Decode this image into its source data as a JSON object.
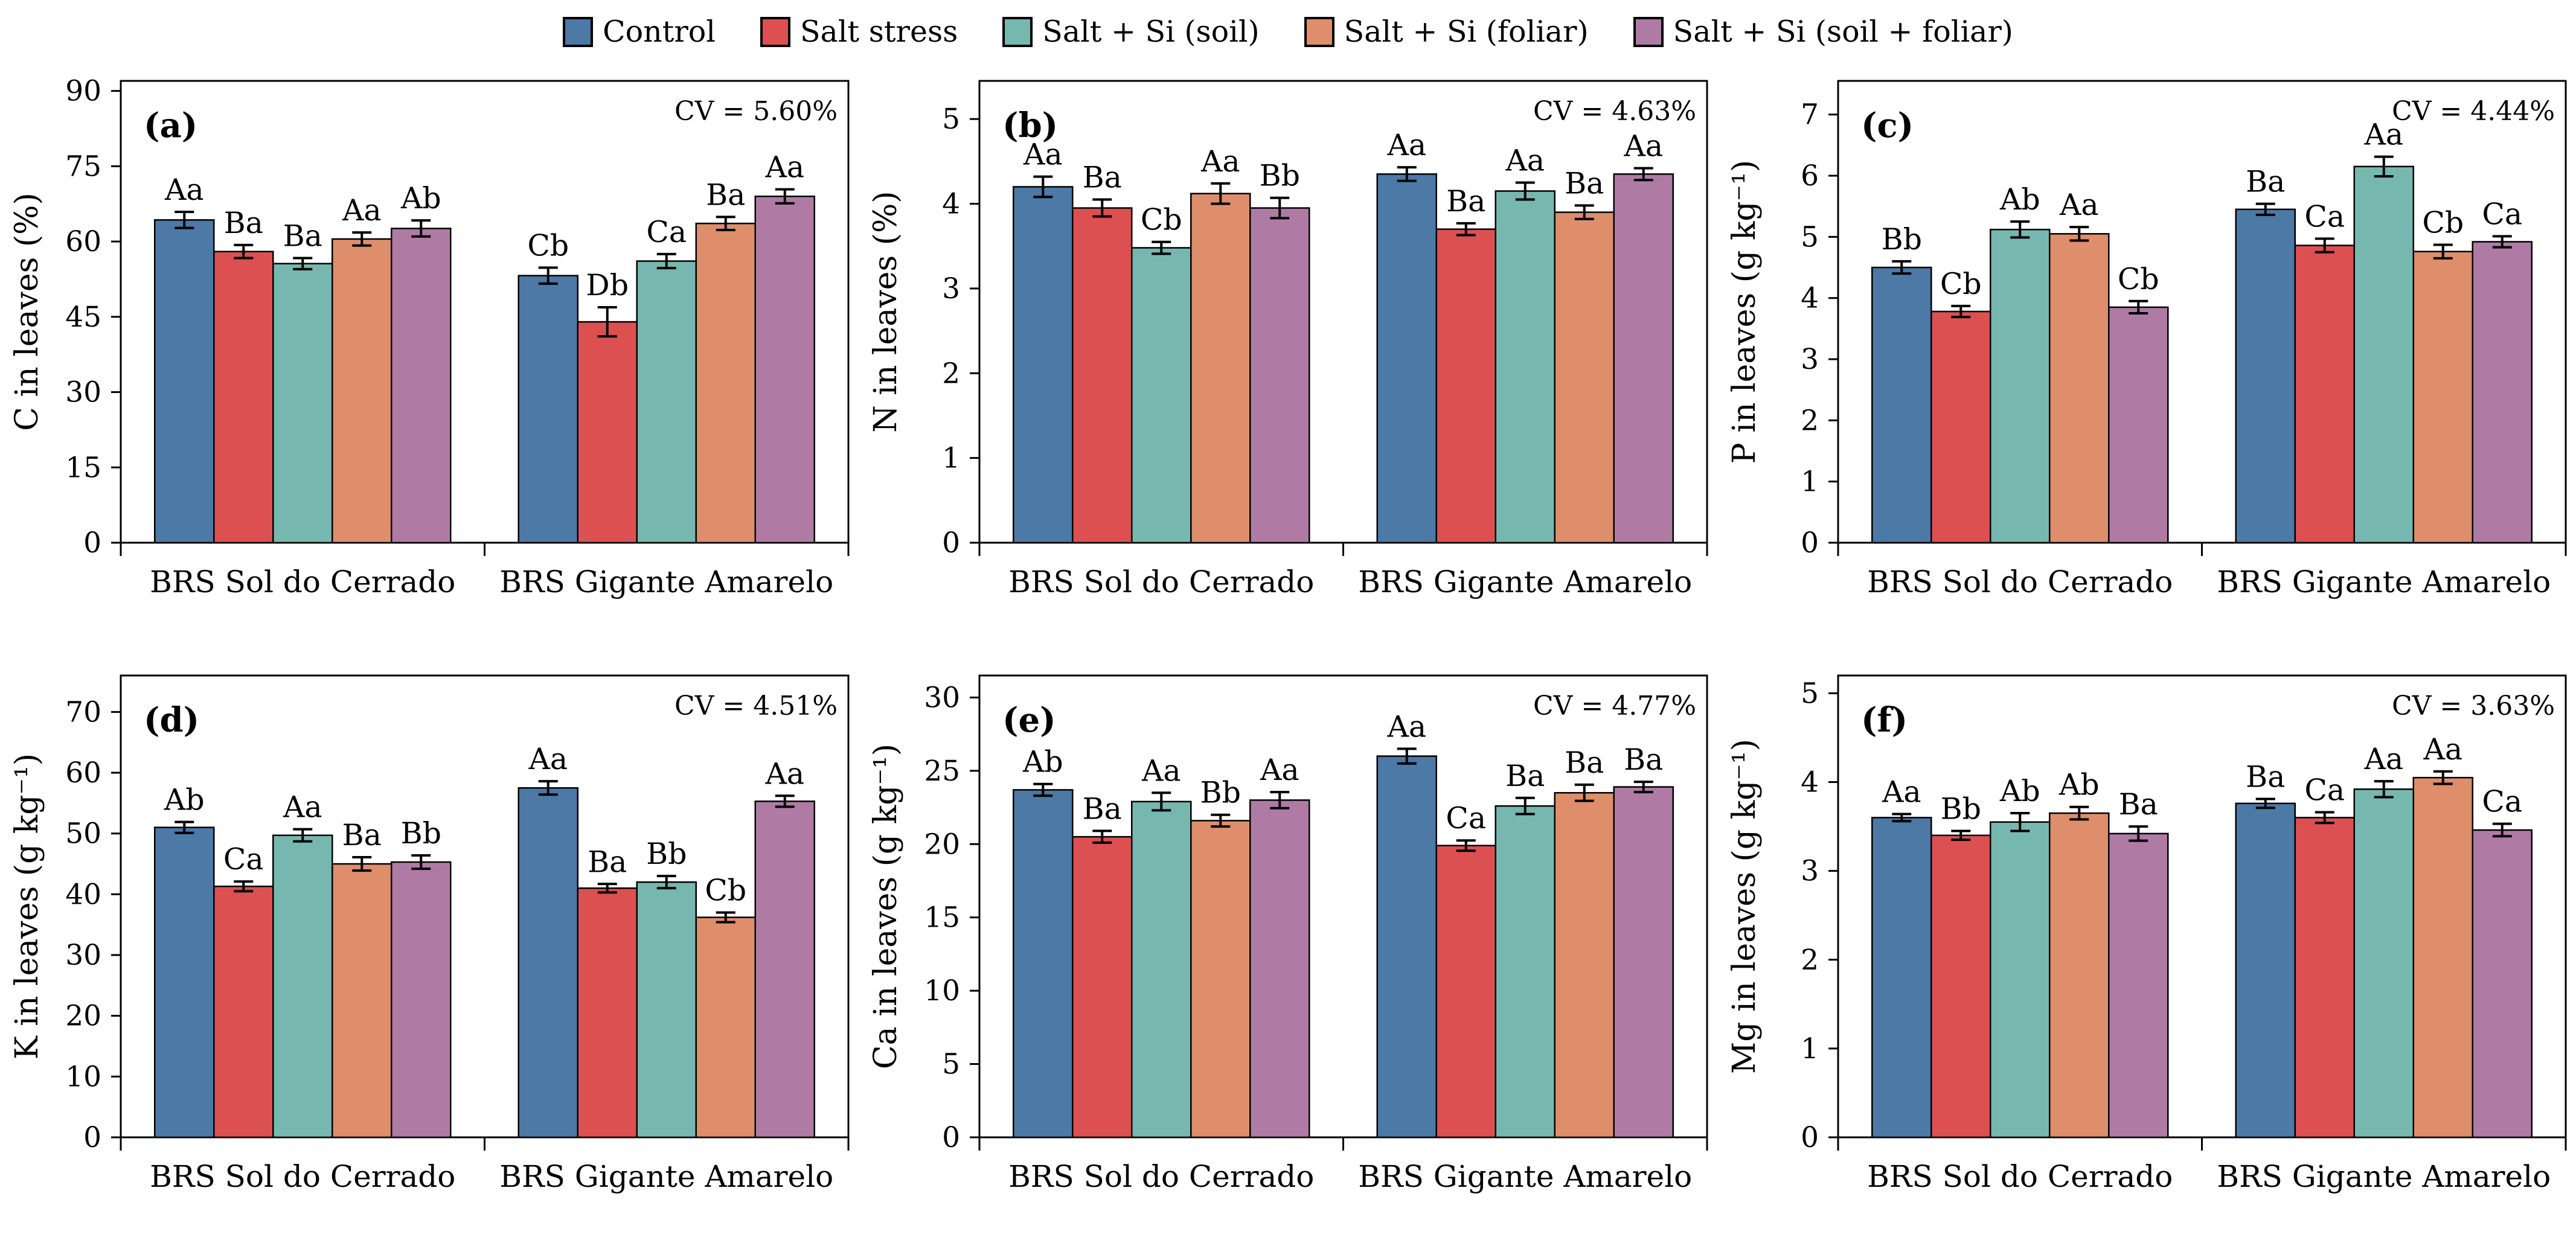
{
  "legend": {
    "items": [
      {
        "label": "Control",
        "color": "#4C79A6"
      },
      {
        "label": "Salt stress",
        "color": "#DC5051"
      },
      {
        "label": "Salt + Si (soil)",
        "color": "#76B8AF"
      },
      {
        "label": "Salt + Si (foliar)",
        "color": "#DE8E6B"
      },
      {
        "label": "Salt + Si (soil + foliar)",
        "color": "#AF7BA5"
      }
    ]
  },
  "series_order": [
    "Control",
    "Salt stress",
    "Salt + Si (soil)",
    "Salt + Si (foliar)",
    "Salt + Si (soil + foliar)"
  ],
  "chart_data": [
    {
      "type": "bar",
      "panel": "(a)",
      "ylabel": "C in leaves (%)",
      "cv_label": "CV = 5.60%",
      "ylim": [
        0,
        92
      ],
      "yticks": [
        0,
        15,
        30,
        45,
        60,
        75,
        90
      ],
      "categories": [
        "BRS Sol do Cerrado",
        "BRS Gigante Amarelo"
      ],
      "groups": [
        {
          "category": "BRS Sol do Cerrado",
          "values": [
            64.3,
            58.0,
            55.6,
            60.5,
            62.6
          ],
          "errors": [
            1.6,
            1.3,
            1.1,
            1.3,
            1.6
          ],
          "letters": [
            "Aa",
            "Ba",
            "Ba",
            "Aa",
            "Ab"
          ]
        },
        {
          "category": "BRS Gigante Amarelo",
          "values": [
            53.2,
            44.0,
            56.1,
            63.6,
            69.0
          ],
          "errors": [
            1.6,
            2.9,
            1.4,
            1.3,
            1.4
          ],
          "letters": [
            "Cb",
            "Db",
            "Ca",
            "Ba",
            "Aa"
          ]
        }
      ]
    },
    {
      "type": "bar",
      "panel": "(b)",
      "ylabel": "N in leaves (%)",
      "cv_label": "CV = 4.63%",
      "ylim": [
        0,
        5.45
      ],
      "yticks": [
        0,
        1,
        2,
        3,
        4,
        5
      ],
      "categories": [
        "BRS Sol do Cerrado",
        "BRS Gigante Amarelo"
      ],
      "groups": [
        {
          "category": "BRS Sol do Cerrado",
          "values": [
            4.2,
            3.95,
            3.48,
            4.12,
            3.95
          ],
          "errors": [
            0.12,
            0.1,
            0.07,
            0.12,
            0.12
          ],
          "letters": [
            "Aa",
            "Ba",
            "Cb",
            "Aa",
            "Bb"
          ]
        },
        {
          "category": "BRS Gigante Amarelo",
          "values": [
            4.35,
            3.7,
            4.15,
            3.9,
            4.35
          ],
          "errors": [
            0.08,
            0.07,
            0.1,
            0.08,
            0.07
          ],
          "letters": [
            "Aa",
            "Ba",
            "Aa",
            "Ba",
            "Aa"
          ]
        }
      ]
    },
    {
      "type": "bar",
      "panel": "(c)",
      "ylabel": "P in leaves (g kg⁻¹)",
      "cv_label": "CV = 4.44%",
      "ylim": [
        0,
        7.55
      ],
      "yticks": [
        0,
        1,
        2,
        3,
        4,
        5,
        6,
        7
      ],
      "categories": [
        "BRS Sol do Cerrado",
        "BRS Gigante Amarelo"
      ],
      "groups": [
        {
          "category": "BRS Sol do Cerrado",
          "values": [
            4.5,
            3.78,
            5.12,
            5.05,
            3.85
          ],
          "errors": [
            0.1,
            0.09,
            0.13,
            0.11,
            0.1
          ],
          "letters": [
            "Bb",
            "Cb",
            "Ab",
            "Aa",
            "Cb"
          ]
        },
        {
          "category": "BRS Gigante Amarelo",
          "values": [
            5.45,
            4.86,
            6.15,
            4.76,
            4.92
          ],
          "errors": [
            0.09,
            0.11,
            0.16,
            0.11,
            0.09
          ],
          "letters": [
            "Ba",
            "Ca",
            "Aa",
            "Cb",
            "Ca"
          ]
        }
      ]
    },
    {
      "type": "bar",
      "panel": "(d)",
      "ylabel": "K in leaves (g kg⁻¹)",
      "cv_label": "CV = 4.51%",
      "ylim": [
        0,
        76
      ],
      "yticks": [
        0,
        10,
        20,
        30,
        40,
        50,
        60,
        70
      ],
      "categories": [
        "BRS Sol do Cerrado",
        "BRS Gigante Amarelo"
      ],
      "groups": [
        {
          "category": "BRS Sol do Cerrado",
          "values": [
            51.0,
            41.3,
            49.7,
            45.0,
            45.3
          ],
          "errors": [
            0.9,
            0.8,
            1.0,
            1.1,
            1.1
          ],
          "letters": [
            "Ab",
            "Ca",
            "Aa",
            "Ba",
            "Bb"
          ]
        },
        {
          "category": "BRS Gigante Amarelo",
          "values": [
            57.5,
            41.0,
            42.0,
            36.2,
            55.3
          ],
          "errors": [
            1.1,
            0.7,
            1.0,
            0.8,
            0.9
          ],
          "letters": [
            "Aa",
            "Ba",
            "Bb",
            "Cb",
            "Aa"
          ]
        }
      ]
    },
    {
      "type": "bar",
      "panel": "(e)",
      "ylabel": "Ca in leaves (g kg⁻¹)",
      "cv_label": "CV = 4.77%",
      "ylim": [
        0,
        31.5
      ],
      "yticks": [
        0,
        5,
        10,
        15,
        20,
        25,
        30
      ],
      "categories": [
        "BRS Sol do Cerrado",
        "BRS Gigante Amarelo"
      ],
      "groups": [
        {
          "category": "BRS Sol do Cerrado",
          "values": [
            23.7,
            20.5,
            22.9,
            21.6,
            23.0
          ],
          "errors": [
            0.4,
            0.4,
            0.6,
            0.4,
            0.55
          ],
          "letters": [
            "Ab",
            "Ba",
            "Aa",
            "Bb",
            "Aa"
          ]
        },
        {
          "category": "BRS Gigante Amarelo",
          "values": [
            26.0,
            19.9,
            22.6,
            23.5,
            23.9
          ],
          "errors": [
            0.5,
            0.35,
            0.55,
            0.55,
            0.35
          ],
          "letters": [
            "Aa",
            "Ca",
            "Ba",
            "Ba",
            "Ba"
          ]
        }
      ]
    },
    {
      "type": "bar",
      "panel": "(f)",
      "ylabel": "Mg in leaves (g kg⁻¹)",
      "cv_label": "CV = 3.63%",
      "ylim": [
        0,
        5.2
      ],
      "yticks": [
        0,
        1,
        2,
        3,
        4,
        5
      ],
      "categories": [
        "BRS Sol do Cerrado",
        "BRS Gigante Amarelo"
      ],
      "groups": [
        {
          "category": "BRS Sol do Cerrado",
          "values": [
            3.6,
            3.4,
            3.55,
            3.65,
            3.42
          ],
          "errors": [
            0.04,
            0.05,
            0.1,
            0.07,
            0.08
          ],
          "letters": [
            "Aa",
            "Bb",
            "Ab",
            "Ab",
            "Ba"
          ]
        },
        {
          "category": "BRS Gigante Amarelo",
          "values": [
            3.76,
            3.6,
            3.92,
            4.05,
            3.46
          ],
          "errors": [
            0.05,
            0.06,
            0.09,
            0.07,
            0.07
          ],
          "letters": [
            "Ba",
            "Ca",
            "Aa",
            "Aa",
            "Ca"
          ]
        }
      ]
    }
  ]
}
